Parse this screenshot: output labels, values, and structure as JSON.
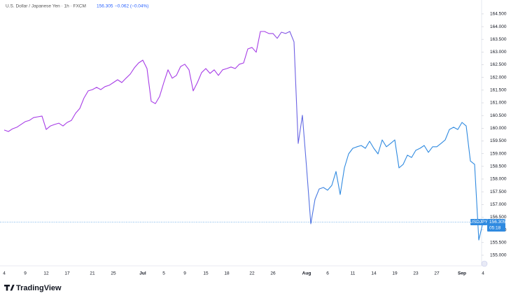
{
  "chart_data": {
    "type": "line",
    "title": "U.S. Dollar / Japanese Yen · 1h · FXCM",
    "last_price": 156.305,
    "change_label": "−0.062 (−0.04%)",
    "symbol": "USDJPY",
    "countdown": "05:18",
    "brand": "TradingView",
    "x": [
      "4",
      null,
      null,
      null,
      null,
      "9",
      null,
      null,
      null,
      null,
      "12",
      null,
      null,
      null,
      null,
      "17",
      null,
      null,
      null,
      null,
      null,
      "21",
      null,
      null,
      null,
      null,
      "25",
      null,
      null,
      null,
      null,
      null,
      null,
      "Jul",
      null,
      null,
      null,
      null,
      "5",
      null,
      null,
      null,
      null,
      "9",
      null,
      null,
      null,
      null,
      "15",
      null,
      null,
      null,
      null,
      "18",
      null,
      null,
      null,
      null,
      null,
      "22",
      null,
      null,
      null,
      null,
      "26",
      null,
      null,
      null,
      null,
      null,
      null,
      null,
      "Aug",
      null,
      null,
      null,
      null,
      "6",
      null,
      null,
      null,
      null,
      null,
      "11",
      null,
      null,
      null,
      null,
      "14",
      null,
      null,
      null,
      null,
      "19",
      null,
      null,
      null,
      null,
      "23",
      null,
      null,
      null,
      null,
      "27",
      null,
      null,
      null,
      null,
      null,
      "Sep",
      null,
      null,
      null,
      null,
      "4"
    ],
    "series": [
      {
        "name": "USDJPY",
        "color": [
          "#a63ce6",
          "#2f8ae0"
        ],
        "values": [
          159.93,
          159.87,
          159.98,
          160.04,
          160.15,
          160.26,
          160.31,
          160.42,
          160.45,
          160.48,
          159.95,
          160.09,
          160.15,
          160.2,
          160.09,
          160.23,
          160.31,
          160.59,
          160.78,
          161.19,
          161.47,
          161.52,
          161.61,
          161.52,
          161.64,
          161.69,
          161.8,
          161.91,
          161.8,
          161.97,
          162.13,
          162.38,
          162.57,
          162.68,
          162.35,
          161.06,
          160.97,
          161.25,
          161.8,
          162.3,
          161.97,
          162.08,
          162.43,
          162.52,
          162.3,
          161.47,
          161.8,
          162.19,
          162.35,
          162.16,
          162.3,
          162.08,
          162.3,
          162.35,
          162.41,
          162.35,
          162.52,
          162.57,
          163.12,
          163.18,
          162.99,
          163.81,
          163.81,
          163.73,
          163.73,
          163.54,
          163.78,
          163.73,
          163.81,
          163.4,
          159.4,
          160.51,
          158.44,
          156.24,
          157.2,
          157.61,
          157.67,
          157.56,
          157.75,
          158.3,
          157.39,
          158.44,
          158.99,
          159.21,
          159.27,
          159.32,
          159.21,
          159.49,
          159.21,
          158.99,
          159.54,
          159.27,
          159.4,
          159.54,
          158.44,
          158.58,
          158.94,
          158.85,
          159.13,
          159.21,
          159.32,
          159.05,
          159.27,
          159.27,
          159.4,
          159.54,
          159.95,
          160.04,
          159.95,
          160.23,
          160.09,
          158.71,
          158.58,
          155.6,
          156.3
        ]
      }
    ],
    "ylim": [
      154.64,
      164.91
    ],
    "yticks": [
      {
        "value": 155,
        "label": "155.000"
      },
      {
        "value": 155.5,
        "label": "155.500"
      },
      {
        "value": 156,
        "label": "156.000"
      },
      {
        "value": 156.5,
        "label": "156.500"
      },
      {
        "value": 157,
        "label": "157.000"
      },
      {
        "value": 157.5,
        "label": "157.500"
      },
      {
        "value": 158,
        "label": "158.000"
      },
      {
        "value": 158.5,
        "label": "158.500"
      },
      {
        "value": 159,
        "label": "159.000"
      },
      {
        "value": 159.5,
        "label": "159.500"
      },
      {
        "value": 160,
        "label": "160.000"
      },
      {
        "value": 160.5,
        "label": "160.500"
      },
      {
        "value": 161,
        "label": "161.000"
      },
      {
        "value": 161.5,
        "label": "161.500"
      },
      {
        "value": 162,
        "label": "162.000"
      },
      {
        "value": 162.5,
        "label": "162.500"
      },
      {
        "value": 163,
        "label": "163.000"
      },
      {
        "value": 163.5,
        "label": "163.500"
      },
      {
        "value": 164,
        "label": "164.000"
      },
      {
        "value": 164.5,
        "label": "164.500"
      }
    ],
    "grid": false
  }
}
